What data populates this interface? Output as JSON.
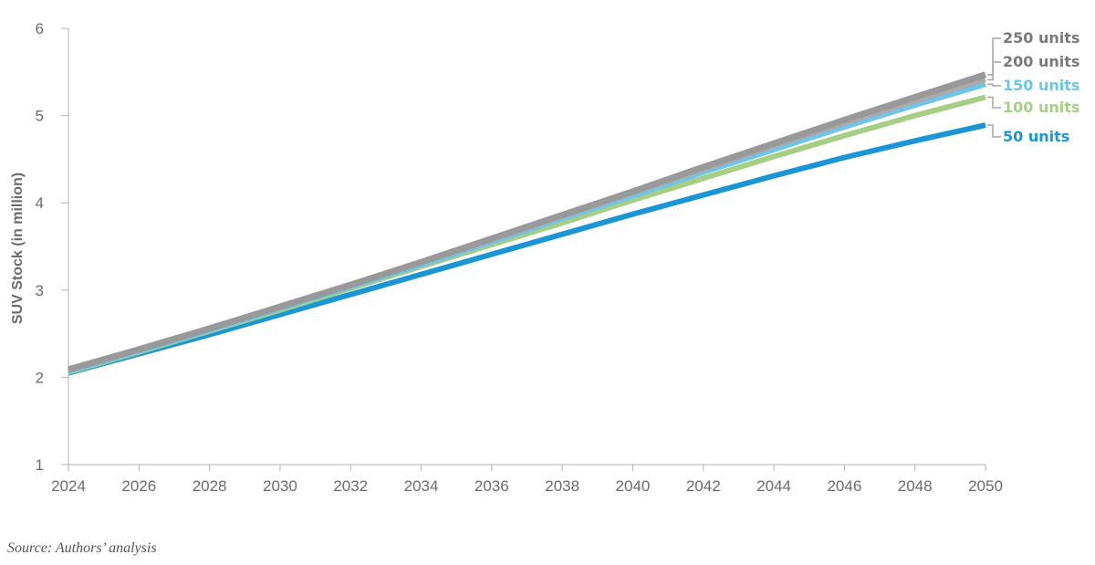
{
  "chart_data": {
    "type": "line",
    "title": "",
    "xlabel": "",
    "ylabel": "SUV Stock (in million)",
    "xlim": [
      2024,
      2050
    ],
    "ylim": [
      1,
      6
    ],
    "x_ticks": [
      "2024",
      "2026",
      "2028",
      "2030",
      "2032",
      "2034",
      "2036",
      "2038",
      "2040",
      "2042",
      "2044",
      "2046",
      "2048",
      "2050"
    ],
    "y_ticks": [
      "1",
      "2",
      "3",
      "4",
      "5",
      "6"
    ],
    "grid": false,
    "x": [
      2024,
      2026,
      2028,
      2030,
      2032,
      2034,
      2036,
      2038,
      2040,
      2042,
      2044,
      2046,
      2048,
      2050
    ],
    "series": [
      {
        "name": "250 units",
        "color": "#999999",
        "values": [
          2.09,
          2.32,
          2.56,
          2.81,
          3.06,
          3.32,
          3.59,
          3.86,
          4.13,
          4.41,
          4.68,
          4.95,
          5.21,
          5.47
        ]
      },
      {
        "name": "200 units",
        "color": "#aaaaaa",
        "values": [
          2.08,
          2.31,
          2.55,
          2.8,
          3.05,
          3.31,
          3.57,
          3.84,
          4.11,
          4.38,
          4.65,
          4.91,
          5.16,
          5.41
        ]
      },
      {
        "name": "150 units",
        "color": "#6cc5ea",
        "values": [
          2.07,
          2.3,
          2.54,
          2.79,
          3.04,
          3.29,
          3.55,
          3.82,
          4.08,
          4.35,
          4.61,
          4.87,
          5.12,
          5.36
        ]
      },
      {
        "name": "100 units",
        "color": "#a6cf84",
        "values": [
          2.06,
          2.29,
          2.53,
          2.77,
          3.02,
          3.27,
          3.52,
          3.77,
          4.03,
          4.28,
          4.53,
          4.77,
          5.0,
          5.21
        ]
      },
      {
        "name": "50 units",
        "color": "#1b96d4",
        "values": [
          2.05,
          2.27,
          2.49,
          2.72,
          2.95,
          3.18,
          3.41,
          3.64,
          3.87,
          4.09,
          4.31,
          4.52,
          4.71,
          4.89
        ]
      }
    ]
  },
  "source_note": "Source: Authors’ analysis"
}
